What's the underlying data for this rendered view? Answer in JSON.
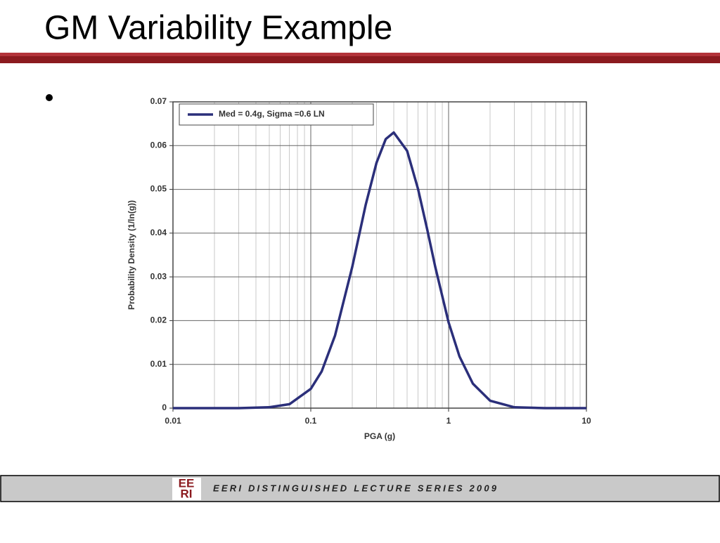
{
  "title": "GM Variability Example",
  "footer": "EERI DISTINGUISHED LECTURE SERIES 2009",
  "logo_lines": [
    "EE",
    "RI"
  ],
  "chart_data": {
    "type": "line",
    "xlabel": "PGA (g)",
    "ylabel": "Probability Density (1/ln(g))",
    "xscale": "log",
    "x": [
      0.01,
      0.02,
      0.03,
      0.05,
      0.07,
      0.1,
      0.12,
      0.15,
      0.2,
      0.25,
      0.3,
      0.35,
      0.4,
      0.5,
      0.6,
      0.7,
      0.8,
      1,
      1.2,
      1.5,
      2,
      3,
      5,
      10
    ],
    "series": [
      {
        "name": "Med = 0.4g, Sigma =0.6 LN",
        "color": "#2b2f7a",
        "values": [
          0,
          0,
          0,
          0.0002,
          0.0009,
          0.0044,
          0.0084,
          0.0166,
          0.0323,
          0.0464,
          0.0561,
          0.0615,
          0.063,
          0.0588,
          0.0501,
          0.0408,
          0.0323,
          0.0196,
          0.0118,
          0.0056,
          0.0017,
          0.0002,
          0,
          0
        ]
      }
    ],
    "xlim": [
      0.01,
      10
    ],
    "ylim": [
      0,
      0.07
    ],
    "xticks": [
      0.01,
      0.1,
      1,
      10
    ],
    "yticks": [
      0,
      0.01,
      0.02,
      0.03,
      0.04,
      0.05,
      0.06,
      0.07
    ],
    "grid": true,
    "legend": "upper left"
  }
}
